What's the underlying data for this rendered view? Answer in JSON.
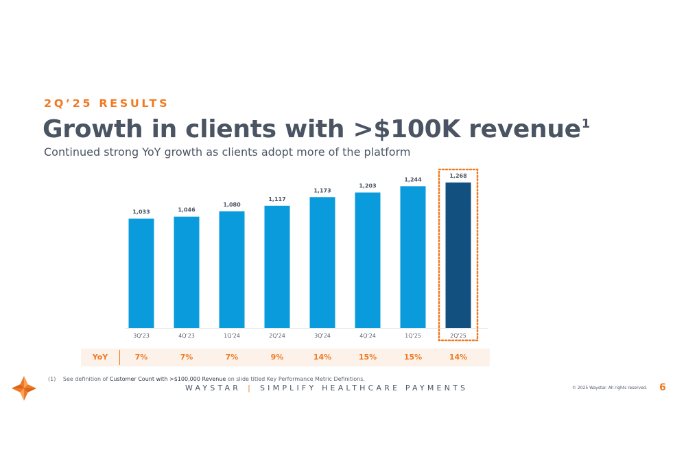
{
  "header": {
    "eyebrow": "2Q’25 RESULTS",
    "title": "Growth in clients with >$100K revenue",
    "title_footnote_marker": "1",
    "subtitle": "Continued strong YoY growth as clients adopt more of the platform"
  },
  "chart_data": {
    "type": "bar",
    "categories": [
      "3Q'23",
      "4Q'23",
      "1Q'24",
      "2Q'24",
      "3Q'24",
      "4Q'24",
      "1Q'25",
      "2Q'25"
    ],
    "values": [
      1033,
      1046,
      1080,
      1117,
      1173,
      1203,
      1244,
      1268
    ],
    "value_labels": [
      "1,033",
      "1,046",
      "1,080",
      "1,117",
      "1,173",
      "1,203",
      "1,244",
      "1,268"
    ],
    "ylim": [
      0,
      1300
    ],
    "grid": false,
    "highlight_index": 7,
    "colors": {
      "bar": "#0a9bdc",
      "highlight_bar": "#12507f",
      "highlight_outline": "#f07a22"
    }
  },
  "yoy": {
    "label": "YoY",
    "values": [
      "7%",
      "7%",
      "7%",
      "9%",
      "14%",
      "15%",
      "15%",
      "14%"
    ]
  },
  "footnote": {
    "marker": "(1)",
    "prefix": "See definition of",
    "emphasis": "Customer Count with >$100,000 Revenue",
    "suffix": "on slide titled Key Performance Metric Definitions."
  },
  "footer": {
    "brand": "WAYSTAR",
    "separator": "|",
    "tagline": "SIMPLIFY HEALTHCARE PAYMENTS",
    "copyright": "© 2025 Waystar. All rights reserved.",
    "page_number": "6"
  },
  "colors": {
    "accent": "#f07a22",
    "text": "#4a5462"
  }
}
